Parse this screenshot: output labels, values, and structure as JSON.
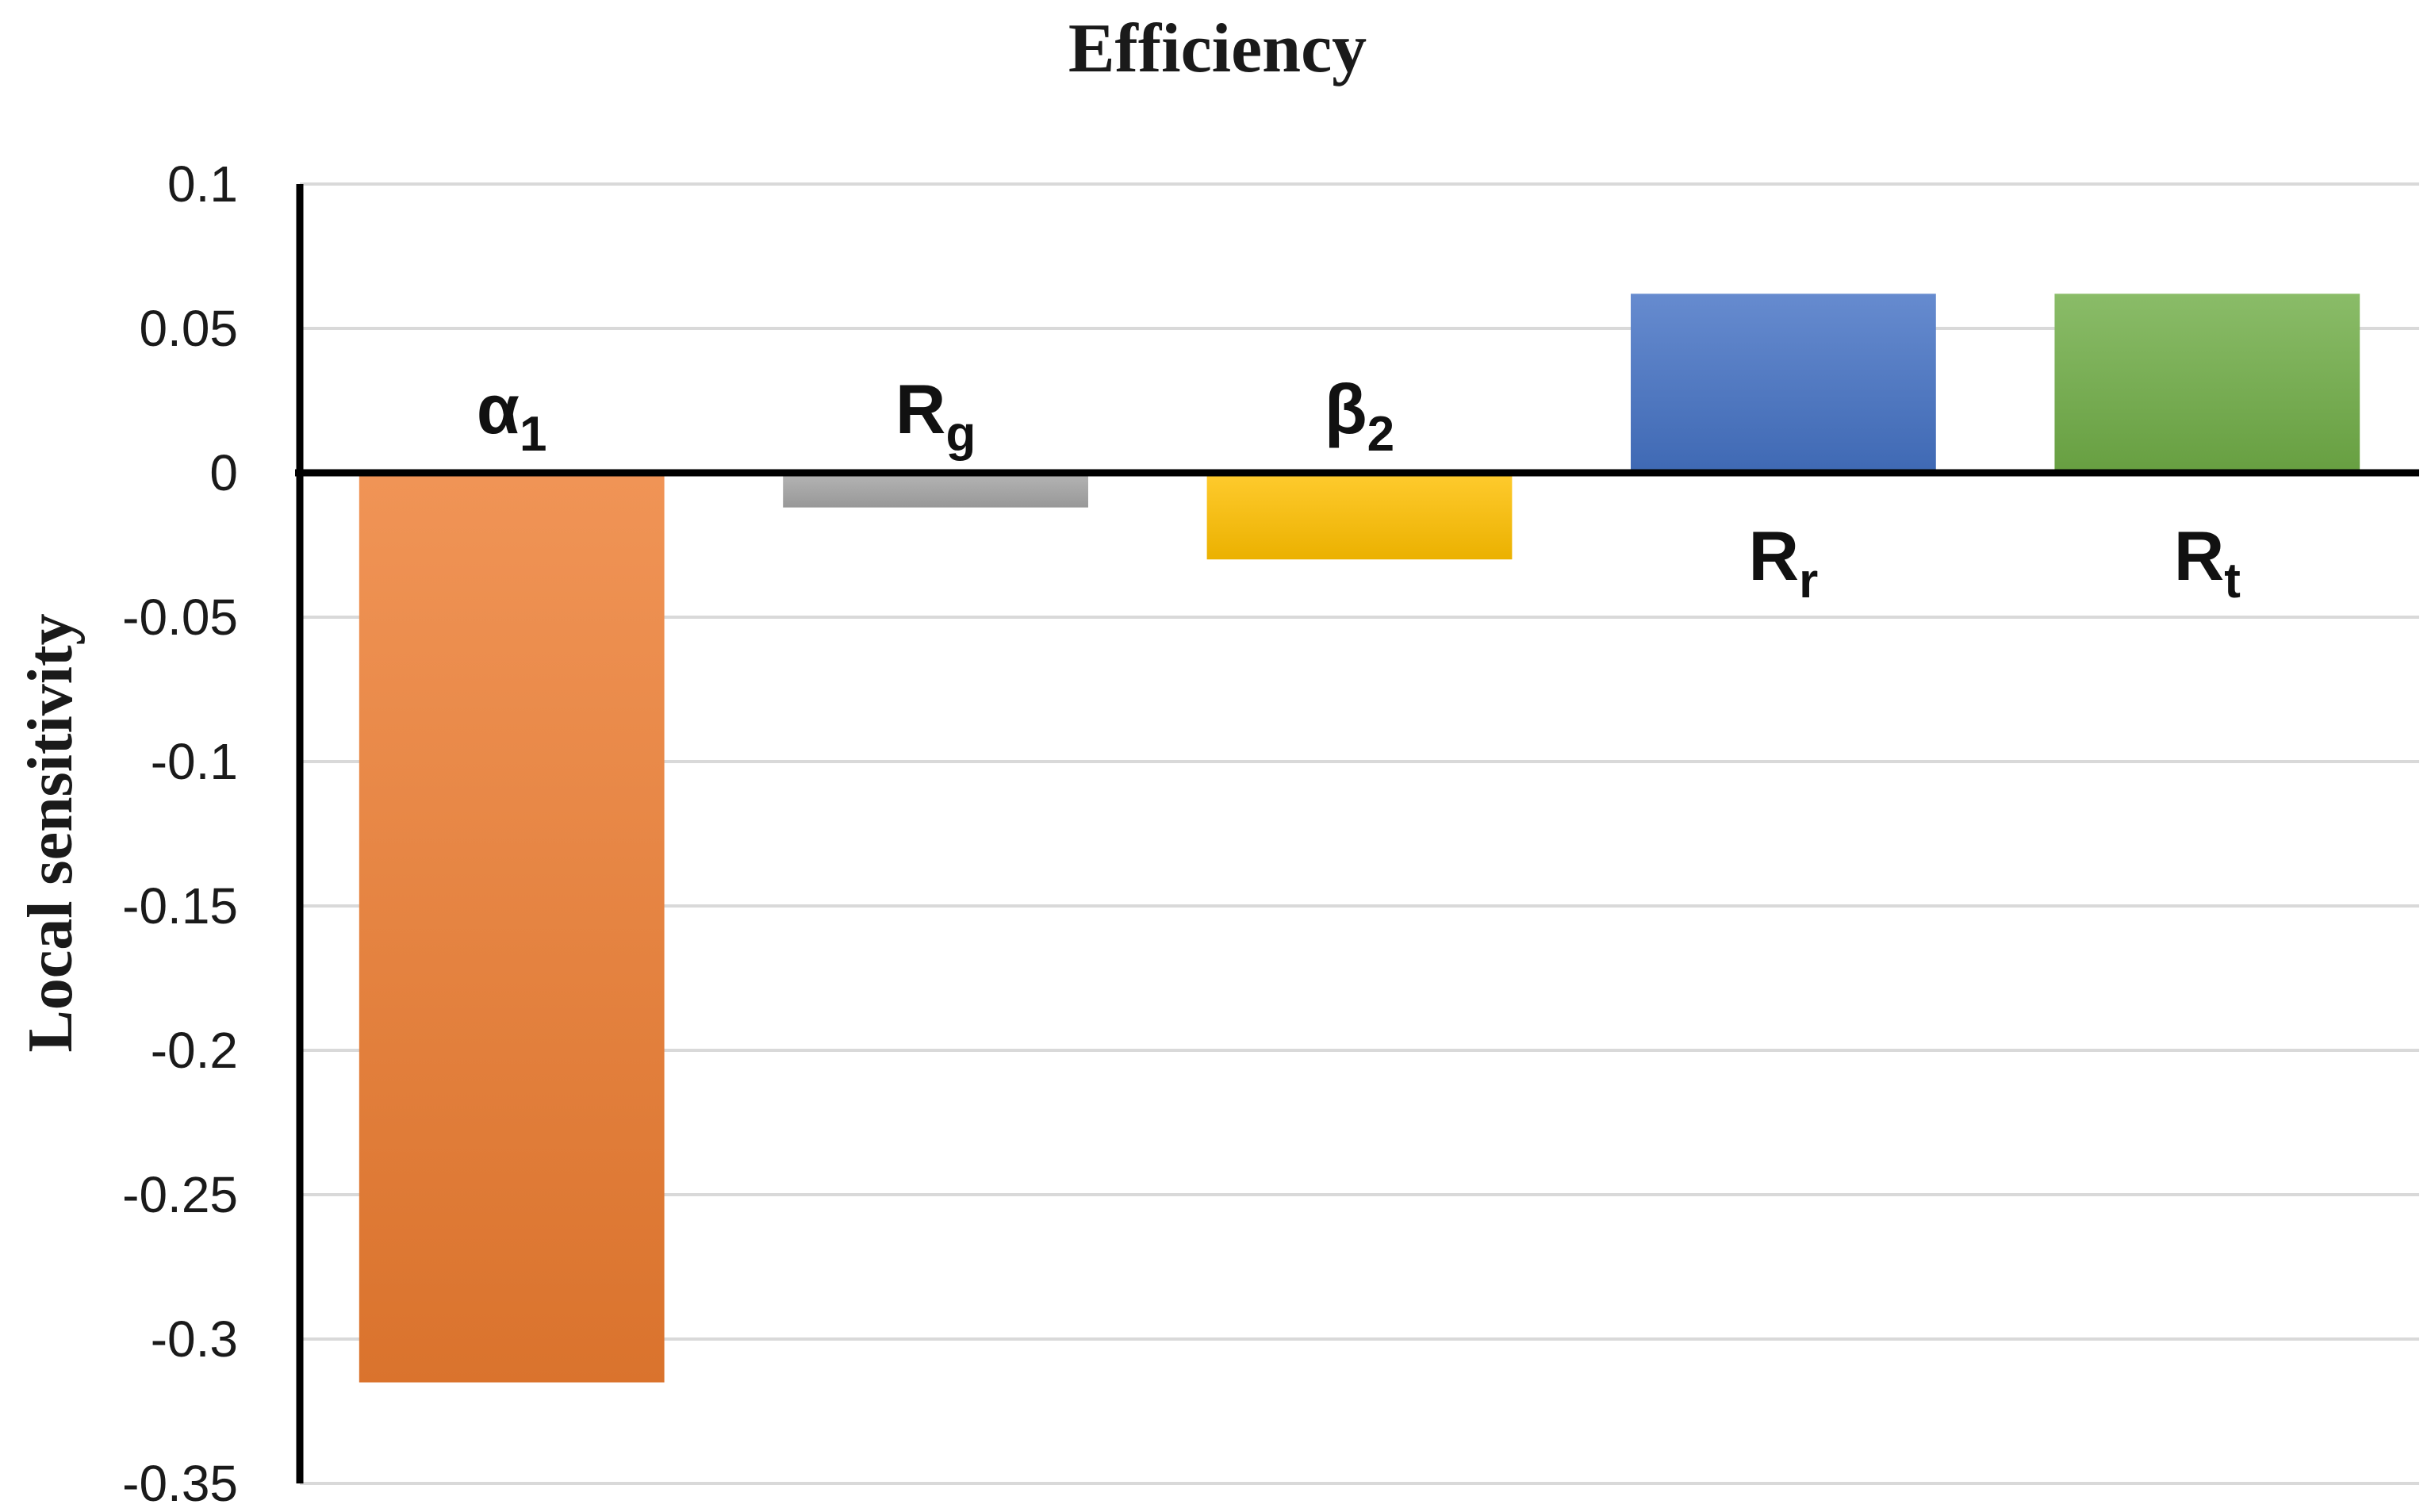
{
  "chart_data": {
    "type": "bar",
    "title": "Efficiency",
    "xlabel": "",
    "ylabel": "Local sensitivity",
    "ylim": [
      -0.35,
      0.1
    ],
    "yticks": [
      "0.1",
      "0.05",
      "0",
      "-0.05",
      "-0.1",
      "-0.15",
      "-0.2",
      "-0.25",
      "-0.3",
      "-0.35"
    ],
    "grid": true,
    "legend": "none",
    "categories": [
      {
        "base": "α",
        "sub": "1"
      },
      {
        "base": "R",
        "sub": "g"
      },
      {
        "base": "β",
        "sub": "2"
      },
      {
        "base": "R",
        "sub": "r"
      },
      {
        "base": "R",
        "sub": "t"
      }
    ],
    "values": [
      -0.315,
      -0.012,
      -0.03,
      0.062,
      0.062
    ],
    "colors": [
      "#ed7d31",
      "#a5a5a5",
      "#ffc000",
      "#4472c4",
      "#70ad47"
    ]
  }
}
